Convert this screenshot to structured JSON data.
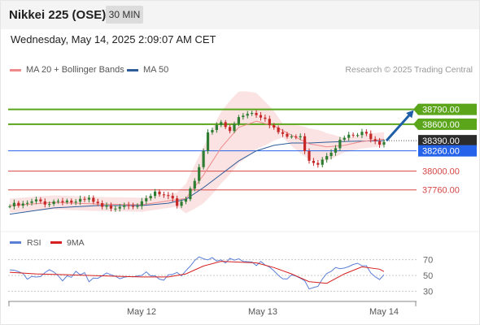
{
  "header": {
    "title": "Nikkei 225 (OSE)",
    "timeframe": "30 MIN",
    "datetime": "Wednesday, May 14, 2025 2:09:07 AM CET"
  },
  "legend": {
    "items": [
      {
        "label": "MA 20 + Bollinger Bands",
        "color": "#f08a8a"
      },
      {
        "label": "MA 50",
        "color": "#2f5d9a"
      }
    ],
    "credit": "Research © 2025 Trading Central"
  },
  "colors": {
    "up": "#2e7d32",
    "down": "#c62828",
    "ma20": "#f08a8a",
    "ma50": "#2f5d9a",
    "band": "#fbe3e3",
    "resistance": "#5aa51a",
    "support_blue": "#2563eb",
    "support_red": "#d64545",
    "current": "#333333",
    "arrow": "#1f5fa8",
    "rsi": "#5b7fd6",
    "rsi_ma": "#d61f1f"
  },
  "chart_data": [
    {
      "type": "line",
      "title": "Nikkei 225 (OSE) 30 MIN",
      "x_ticks": [
        "May 12",
        "May 13",
        "May 14"
      ],
      "ylim": [
        37300,
        39150
      ],
      "levels": [
        {
          "value": 38790,
          "label": "38790.00",
          "kind": "resistance"
        },
        {
          "value": 38600,
          "label": "38600.00",
          "kind": "resistance"
        },
        {
          "value": 38390,
          "label": "38390.00",
          "kind": "current"
        },
        {
          "value": 38260,
          "label": "38260.00",
          "kind": "pivot"
        },
        {
          "value": 38000,
          "label": "38000.00",
          "kind": "support"
        },
        {
          "value": 37760,
          "label": "37760.00",
          "kind": "support"
        }
      ],
      "path_points": [
        [
          0,
          37550
        ],
        [
          3,
          37560
        ],
        [
          6,
          37610
        ],
        [
          9,
          37600
        ],
        [
          12,
          37640
        ],
        [
          15,
          37590
        ],
        [
          18,
          37630
        ],
        [
          21,
          37520
        ],
        [
          24,
          37560
        ],
        [
          27,
          37600
        ],
        [
          30,
          37570
        ],
        [
          33,
          37720
        ],
        [
          36,
          37640
        ],
        [
          38,
          37580
        ],
        [
          40,
          37660
        ],
        [
          42,
          37900
        ],
        [
          45,
          38460
        ],
        [
          48,
          38620
        ],
        [
          50,
          38500
        ],
        [
          52,
          38700
        ],
        [
          54,
          38760
        ],
        [
          56,
          38740
        ],
        [
          58,
          38700
        ],
        [
          60,
          38550
        ],
        [
          62,
          38440
        ],
        [
          64,
          38440
        ],
        [
          66,
          38420
        ],
        [
          68,
          38160
        ],
        [
          70,
          38110
        ],
        [
          72,
          38230
        ],
        [
          74,
          38330
        ],
        [
          76,
          38420
        ],
        [
          78,
          38450
        ],
        [
          80,
          38470
        ],
        [
          82,
          38450
        ],
        [
          84,
          38380
        ],
        [
          85,
          38400
        ]
      ],
      "series": [
        {
          "name": "MA 20 + Bollinger Bands",
          "values": [
            [
              0,
              37560
            ],
            [
              10,
              37600
            ],
            [
              20,
              37580
            ],
            [
              30,
              37570
            ],
            [
              36,
              37620
            ],
            [
              40,
              37650
            ],
            [
              44,
              37950
            ],
            [
              48,
              38300
            ],
            [
              52,
              38560
            ],
            [
              56,
              38640
            ],
            [
              60,
              38580
            ],
            [
              64,
              38460
            ],
            [
              68,
              38350
            ],
            [
              72,
              38310
            ],
            [
              76,
              38330
            ],
            [
              80,
              38380
            ],
            [
              85,
              38410
            ]
          ]
        },
        {
          "name": "MA 50",
          "values": [
            [
              0,
              37450
            ],
            [
              10,
              37530
            ],
            [
              20,
              37560
            ],
            [
              30,
              37560
            ],
            [
              36,
              37590
            ],
            [
              40,
              37640
            ],
            [
              44,
              37790
            ],
            [
              48,
              37960
            ],
            [
              52,
              38130
            ],
            [
              56,
              38260
            ],
            [
              60,
              38330
            ],
            [
              64,
              38360
            ],
            [
              68,
              38360
            ],
            [
              72,
              38370
            ],
            [
              76,
              38380
            ],
            [
              80,
              38385
            ],
            [
              85,
              38390
            ]
          ]
        }
      ],
      "projection": [
        [
          85,
          38390
        ],
        [
          92,
          38790
        ]
      ]
    },
    {
      "type": "line",
      "title": "RSI",
      "legend": [
        "RSI",
        "9MA"
      ],
      "ylim": [
        20,
        80
      ],
      "y_ticks": [
        "70",
        "50",
        "30"
      ],
      "series": [
        {
          "name": "RSI",
          "values": [
            [
              0,
              57
            ],
            [
              3,
              52
            ],
            [
              6,
              48
            ],
            [
              9,
              55
            ],
            [
              12,
              49
            ],
            [
              15,
              53
            ],
            [
              18,
              46
            ],
            [
              21,
              51
            ],
            [
              24,
              44
            ],
            [
              27,
              50
            ],
            [
              30,
              47
            ],
            [
              33,
              52
            ],
            [
              36,
              45
            ],
            [
              38,
              51
            ],
            [
              40,
              58
            ],
            [
              42,
              74
            ],
            [
              45,
              66
            ],
            [
              48,
              70
            ],
            [
              51,
              64
            ],
            [
              54,
              68
            ],
            [
              57,
              66
            ],
            [
              60,
              55
            ],
            [
              62,
              47
            ],
            [
              64,
              50
            ],
            [
              66,
              42
            ],
            [
              68,
              34
            ],
            [
              70,
              40
            ],
            [
              72,
              48
            ],
            [
              74,
              57
            ],
            [
              76,
              64
            ],
            [
              78,
              61
            ],
            [
              80,
              62
            ],
            [
              82,
              58
            ],
            [
              84,
              47
            ],
            [
              85,
              52
            ]
          ]
        },
        {
          "name": "9MA",
          "values": [
            [
              0,
              54
            ],
            [
              6,
              52
            ],
            [
              12,
              51
            ],
            [
              18,
              50
            ],
            [
              24,
              49
            ],
            [
              30,
              48
            ],
            [
              36,
              48
            ],
            [
              40,
              52
            ],
            [
              44,
              62
            ],
            [
              48,
              68
            ],
            [
              52,
              67
            ],
            [
              56,
              66
            ],
            [
              60,
              60
            ],
            [
              64,
              52
            ],
            [
              68,
              42
            ],
            [
              72,
              40
            ],
            [
              76,
              52
            ],
            [
              80,
              61
            ],
            [
              84,
              58
            ],
            [
              85,
              55
            ]
          ]
        }
      ]
    }
  ]
}
